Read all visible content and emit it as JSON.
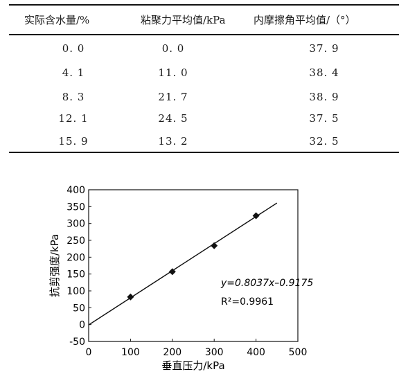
{
  "table": {
    "headers": [
      "实际含水量/%",
      "粘聚力平均值/kPa",
      "内摩擦角平均值/（°）"
    ],
    "rows": [
      [
        "0. 0",
        "0. 0",
        "37. 9"
      ],
      [
        "4. 1",
        "11. 0",
        "38. 4"
      ],
      [
        "8. 3",
        "21. 7",
        "38. 9"
      ],
      [
        "12. 1",
        "24. 5",
        "37. 5"
      ],
      [
        "15. 9",
        "13. 2",
        "32. 5"
      ]
    ]
  },
  "chart_data": {
    "type": "scatter",
    "xlabel": "垂直压力/kPa",
    "ylabel": "抗剪强度/kPa",
    "xlim": [
      0,
      500
    ],
    "ylim": [
      -50,
      400
    ],
    "x_ticks": [
      0,
      100,
      200,
      300,
      400,
      500
    ],
    "y_ticks": [
      -50,
      0,
      50,
      100,
      150,
      200,
      250,
      300,
      350,
      400
    ],
    "grid": false,
    "points": [
      {
        "x": 100,
        "y": 82
      },
      {
        "x": 200,
        "y": 157
      },
      {
        "x": 300,
        "y": 234
      },
      {
        "x": 400,
        "y": 323
      }
    ],
    "trendline": {
      "slope": 0.8037,
      "intercept": -0.9175,
      "x_range": [
        0,
        450
      ]
    },
    "annotations": {
      "equation": "y=0.8037x–0.9175",
      "r_squared": "R²=0.9961"
    }
  }
}
